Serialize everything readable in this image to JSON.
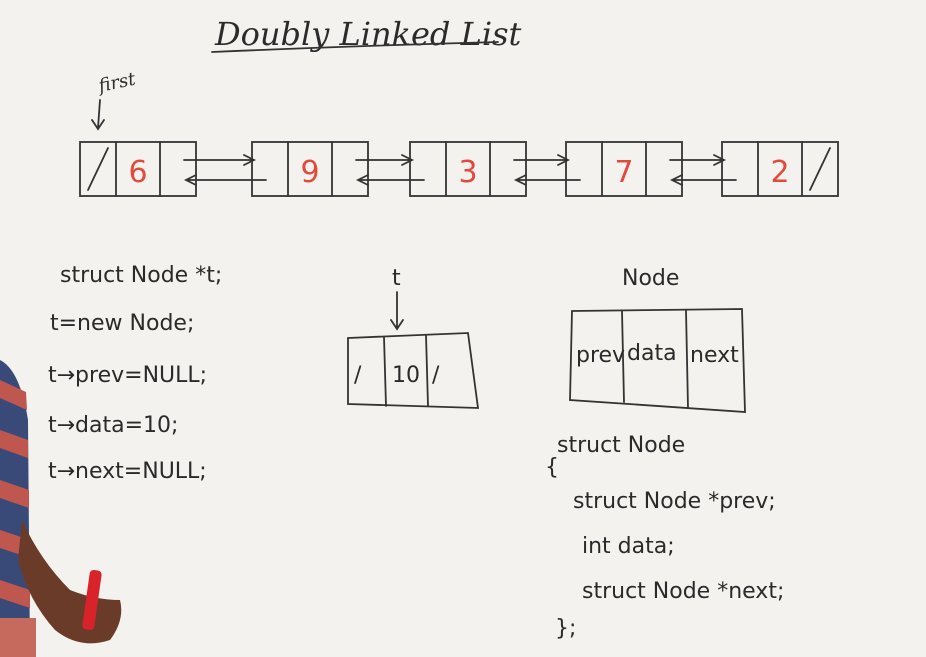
{
  "title": "Doubly Linked List",
  "first_label": "first",
  "list_nodes": [
    {
      "value": "6",
      "prev_null": "/",
      "next_null": ""
    },
    {
      "value": "9",
      "prev_null": "",
      "next_null": ""
    },
    {
      "value": "3",
      "prev_null": "",
      "next_null": ""
    },
    {
      "value": "7",
      "prev_null": "",
      "next_null": ""
    },
    {
      "value": "2",
      "prev_null": "",
      "next_null": "/"
    }
  ],
  "code_left": [
    "struct Node *t;",
    "t=new Node;",
    "t→prev=NULL;",
    "t→data=10;",
    "t→next=NULL;"
  ],
  "pointer_t": "t",
  "new_node": {
    "prev": "/",
    "data": "10",
    "next": "/"
  },
  "node_label": "Node",
  "node_fields": [
    "prev",
    "data",
    "next"
  ],
  "code_right": [
    "struct Node",
    "{",
    "struct Node *prev;",
    "int data;",
    "struct Node *next;",
    "};"
  ],
  "colors": {
    "board": "#f3f2ee",
    "ink": "#2b2b2b",
    "value_ink": "#e24a3b",
    "marker": "#d8232a"
  }
}
